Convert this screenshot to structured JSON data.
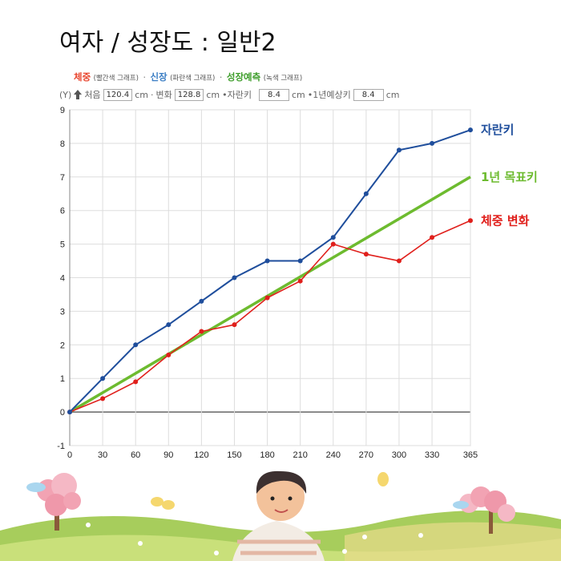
{
  "title": "여자 / 성장도 : 일반2",
  "legend": {
    "weight": {
      "label": "체중",
      "note": "(빨간색 그래프)",
      "color": "#e8452e"
    },
    "height": {
      "label": "신장",
      "note": "(파란색 그래프)",
      "color": "#3a7dc4"
    },
    "forecast": {
      "label": "성장예측",
      "note": "(녹색 그래프)",
      "color": "#3f9e2c"
    },
    "separator": "·"
  },
  "info": {
    "y_label": "(Y)",
    "start_label": "처음",
    "start_value": "120.4",
    "change_label": "변화",
    "change_value": "128.8",
    "grew_label": "•자란키",
    "grew_value": "8.4",
    "target_label": "•1년예상키",
    "target_value": "8.4",
    "unit": "cm",
    "sep": "·"
  },
  "chart_data": {
    "type": "line",
    "x": [
      0,
      30,
      60,
      90,
      120,
      150,
      180,
      210,
      240,
      270,
      300,
      330,
      365
    ],
    "x_ticks": [
      "0",
      "30",
      "60",
      "90",
      "120",
      "150",
      "180",
      "210",
      "240",
      "270",
      "300",
      "330",
      "365"
    ],
    "y_ticks": [
      "-1",
      "0",
      "1",
      "2",
      "3",
      "4",
      "5",
      "6",
      "7",
      "8",
      "9"
    ],
    "xlim": [
      0,
      365
    ],
    "ylim": [
      -1,
      9
    ],
    "grid": true,
    "series": [
      {
        "name": "자란키",
        "color": "#1f4e9c",
        "width": 2,
        "markers": true,
        "values": [
          0,
          1,
          2,
          2.6,
          3.3,
          4,
          4.5,
          4.5,
          5.2,
          6.5,
          7.8,
          8,
          8.4
        ]
      },
      {
        "name": "1년 목표키",
        "color": "#6dbb2f",
        "width": 3.5,
        "markers": false,
        "x": [
          0,
          365
        ],
        "values": [
          0,
          7
        ]
      },
      {
        "name": "체중 변화",
        "color": "#e0201c",
        "width": 1.6,
        "markers": true,
        "values": [
          0,
          0.4,
          0.9,
          1.7,
          2.4,
          2.6,
          3.4,
          3.9,
          5,
          4.7,
          4.5,
          5.2,
          5.7
        ]
      }
    ]
  }
}
